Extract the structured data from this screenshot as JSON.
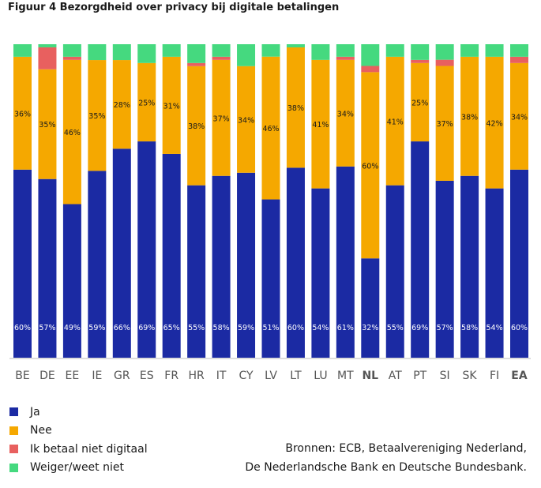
{
  "chart_data": {
    "type": "bar",
    "stacked": true,
    "title": "Figuur 4  Bezorgdheid over privacy bij digitale betalingen",
    "categories": [
      "BE",
      "DE",
      "EE",
      "IE",
      "GR",
      "ES",
      "FR",
      "HR",
      "IT",
      "CY",
      "LV",
      "LT",
      "LU",
      "MT",
      "NL",
      "AT",
      "PT",
      "SI",
      "SK",
      "FI",
      "EA"
    ],
    "bold_categories": [
      "NL",
      "EA"
    ],
    "ylim": [
      0,
      100
    ],
    "grid": false,
    "legend_position": "bottom-left",
    "series": [
      {
        "name": "Ja",
        "color": "#1b2aa3",
        "values": [
          60,
          57,
          49,
          59,
          66,
          69,
          65,
          55,
          58,
          59,
          51,
          60,
          54,
          61,
          32,
          55,
          69,
          57,
          58,
          54,
          60
        ],
        "labels": [
          "60%",
          "57%",
          "49%",
          "59%",
          "66%",
          "69%",
          "65%",
          "55%",
          "58%",
          "59%",
          "51%",
          "60%",
          "54%",
          "61%",
          "32%",
          "55%",
          "69%",
          "57%",
          "58%",
          "54%",
          "60%"
        ]
      },
      {
        "name": "Nee",
        "color": "#f5a800",
        "values": [
          36,
          35,
          46,
          35,
          28,
          25,
          31,
          38,
          37,
          34,
          46,
          38,
          41,
          34,
          60,
          41,
          25,
          37,
          38,
          42,
          34
        ],
        "labels": [
          "36%",
          "35%",
          "46%",
          "35%",
          "28%",
          "25%",
          "31%",
          "38%",
          "37%",
          "34%",
          "46%",
          "38%",
          "41%",
          "34%",
          "60%",
          "41%",
          "25%",
          "37%",
          "38%",
          "42%",
          "34%"
        ]
      },
      {
        "name": "Ik betaal niet digitaal",
        "color": "#e8605f",
        "values": [
          0,
          7,
          1,
          0,
          0,
          0,
          0,
          1,
          1,
          0,
          0,
          0,
          0,
          1,
          2,
          0,
          1,
          2,
          0,
          0,
          2
        ]
      },
      {
        "name": "Weiger/weet niet",
        "color": "#45d97f",
        "values": [
          4,
          1,
          4,
          5,
          5,
          6,
          4,
          6,
          4,
          7,
          4,
          1,
          5,
          4,
          7,
          4,
          5,
          5,
          4,
          4,
          4
        ]
      }
    ]
  },
  "source": {
    "line1": "Bronnen: ECB, Betaalvereniging Nederland,",
    "line2": "De Nederlandsche Bank en Deutsche Bundesbank."
  }
}
